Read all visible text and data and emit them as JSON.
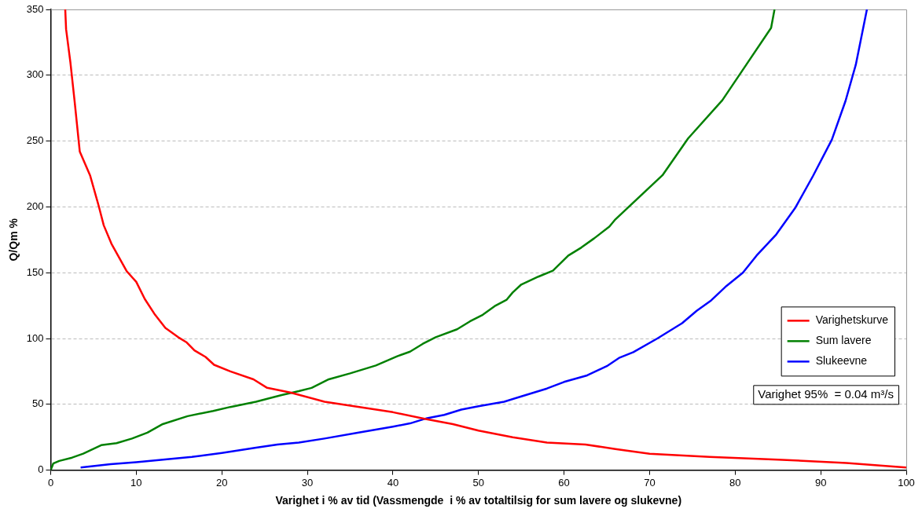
{
  "chart_data": {
    "type": "line",
    "xlabel": "Varighet i % av tid (Vassmengde  i % av totaltilsig for sum lavere og slukevne)",
    "ylabel": "Q/Qm %",
    "xlim": [
      0,
      100
    ],
    "xticks": [
      0,
      10,
      20,
      30,
      40,
      50,
      60,
      70,
      80,
      90,
      100
    ],
    "ylim": [
      0,
      350
    ],
    "yticks": [
      0,
      50,
      100,
      150,
      200,
      250,
      300,
      350
    ],
    "grid": "y",
    "legend": "bottom right",
    "marker": "none",
    "line_style": "solid",
    "annotations": [
      "Varighet 95%  = 0.04 m³/s"
    ],
    "series": [
      {
        "name": "Varighetskurve",
        "color": "#ff0000",
        "x": [
          1.7,
          1.8,
          2.3,
          2.8,
          3.4,
          4.6,
          5.6,
          6.2,
          7.1,
          8.3,
          8.9,
          10,
          11,
          12.2,
          13.4,
          14.9,
          15.9,
          16.8,
          18.1,
          19.1,
          21,
          23.7,
          25.3,
          28,
          32,
          40,
          43.7,
          47,
          50,
          54,
          58,
          62.5,
          66,
          70,
          77,
          85,
          93,
          100
        ],
        "values": [
          350,
          335,
          310,
          280,
          242,
          224,
          201,
          186,
          172,
          158,
          151,
          143,
          130,
          118,
          108,
          101,
          97,
          91,
          86,
          80,
          75,
          69,
          62.5,
          59,
          52,
          44,
          39,
          35,
          30,
          25,
          21,
          19.5,
          16,
          12.5,
          10,
          8,
          5.5,
          2
        ]
      },
      {
        "name": "Sum lavere",
        "color": "#008000",
        "x": [
          0,
          0.3,
          1,
          2.5,
          3.8,
          5.9,
          7.7,
          9.5,
          11.3,
          13.1,
          16,
          19,
          21,
          24,
          27,
          29,
          30.5,
          32.5,
          35,
          38,
          40.5,
          42,
          43.5,
          45,
          47.5,
          49,
          50.5,
          52,
          53.3,
          54,
          55,
          57,
          58.7,
          60.5,
          62,
          63.5,
          65.3,
          66,
          71.5,
          74.5,
          78.5,
          81.3,
          84.2,
          84.6
        ],
        "values": [
          0,
          5,
          7,
          9.5,
          12.5,
          19,
          20.5,
          24,
          28.5,
          35,
          41,
          45,
          48,
          52,
          57,
          60,
          62.5,
          69,
          73.5,
          79.5,
          86.5,
          90,
          96,
          101,
          107,
          113,
          118,
          125,
          129.5,
          135,
          141,
          147,
          151.5,
          163,
          169,
          176,
          185,
          190.5,
          224,
          252,
          281,
          308,
          336,
          350
        ]
      },
      {
        "name": "Slukeevne",
        "color": "#0000ff",
        "x": [
          3.5,
          7,
          10,
          16.5,
          20,
          24,
          26.5,
          29,
          32,
          36,
          40,
          42,
          44,
          46,
          48,
          50,
          53,
          55,
          58,
          60,
          62.7,
          65,
          66.5,
          68.1,
          70.9,
          73.8,
          75.5,
          77.2,
          79,
          80.9,
          82.5,
          84.8,
          87,
          89.1,
          91.3,
          92.9,
          94.1,
          95.4
        ],
        "values": [
          2,
          4.5,
          6,
          10,
          13,
          17,
          19.5,
          21,
          24,
          28.5,
          33,
          35.5,
          39.5,
          42,
          46,
          48.5,
          52,
          56,
          62,
          67,
          72,
          79,
          85.5,
          89.6,
          100,
          111.6,
          121,
          129,
          140,
          150,
          163,
          179,
          199,
          223.5,
          251,
          280.5,
          308,
          350
        ]
      }
    ]
  }
}
